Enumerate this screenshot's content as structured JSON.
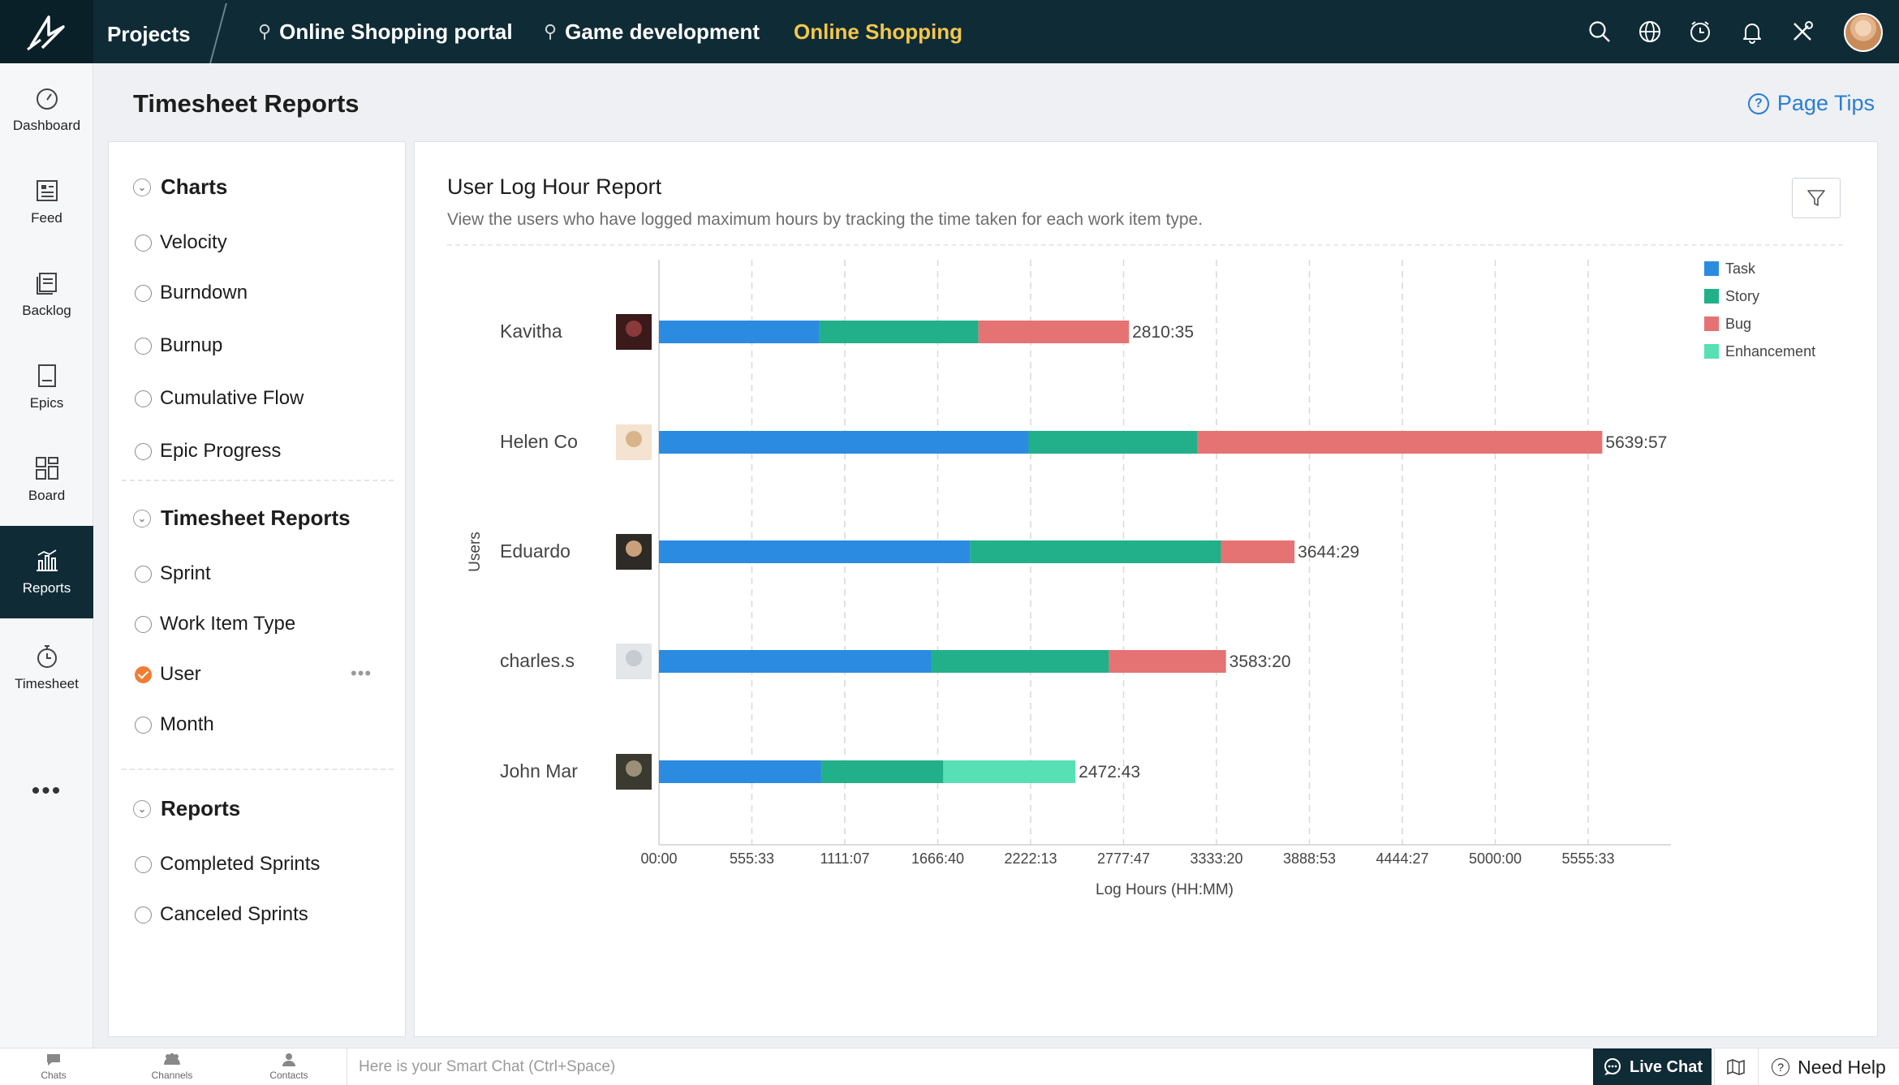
{
  "topbar": {
    "projects_label": "Projects",
    "tabs": [
      {
        "label": "Online Shopping portal",
        "pinned": true
      },
      {
        "label": "Game development",
        "pinned": true
      },
      {
        "label": "Online Shopping",
        "pinned": false,
        "active": true
      }
    ],
    "icons": [
      "search-icon",
      "globe-icon",
      "timer-icon",
      "bell-icon",
      "tools-icon",
      "user-avatar"
    ]
  },
  "sidebar": {
    "items": [
      {
        "label": "Dashboard",
        "icon": "dashboard-icon"
      },
      {
        "label": "Feed",
        "icon": "feed-icon"
      },
      {
        "label": "Backlog",
        "icon": "backlog-icon"
      },
      {
        "label": "Epics",
        "icon": "epics-icon"
      },
      {
        "label": "Board",
        "icon": "board-icon"
      },
      {
        "label": "Reports",
        "icon": "reports-icon",
        "active": true
      },
      {
        "label": "Timesheet",
        "icon": "timesheet-icon"
      }
    ],
    "more": "•••"
  },
  "header": {
    "title": "Timesheet Reports",
    "page_tips": "Page Tips"
  },
  "report_nav": {
    "sections": [
      {
        "title": "Charts",
        "items": [
          "Velocity",
          "Burndown",
          "Burnup",
          "Cumulative Flow",
          "Epic Progress"
        ]
      },
      {
        "title": "Timesheet Reports",
        "items": [
          "Sprint",
          "Work Item Type",
          "User",
          "Month"
        ],
        "selected": "User"
      },
      {
        "title": "Reports",
        "items": [
          "Completed Sprints",
          "Canceled Sprints"
        ]
      }
    ]
  },
  "report": {
    "title": "User Log Hour Report",
    "description": "View the users who have logged maximum hours by tracking the time taken for each work item type."
  },
  "chart_data": {
    "type": "bar",
    "orientation": "horizontal",
    "stacked": true,
    "ylabel": "Users",
    "xlabel": "Log Hours (HH:MM)",
    "categories": [
      "Kavitha",
      "Helen Co",
      "Eduardo",
      "charles.s",
      "John Mar"
    ],
    "totals": [
      "2810:35",
      "5639:57",
      "3644:29",
      "3583:20",
      "2472:43"
    ],
    "series": [
      {
        "name": "Task",
        "color": "#2b8be0",
        "values": [
          960,
          2210,
          1860,
          1630,
          970
        ]
      },
      {
        "name": "Story",
        "color": "#22b08a",
        "values": [
          950,
          1010,
          1500,
          1060,
          730
        ]
      },
      {
        "name": "Bug",
        "color": "#e57373",
        "values": [
          900,
          2420,
          440,
          700,
          0
        ]
      },
      {
        "name": "Enhancement",
        "color": "#56e0b4",
        "values": [
          0,
          0,
          0,
          0,
          790
        ]
      }
    ],
    "x_ticks": [
      "00:00",
      "555:33",
      "1111:07",
      "1666:40",
      "2222:13",
      "2777:47",
      "3333:20",
      "3888:53",
      "4444:27",
      "5000:00",
      "5555:33"
    ],
    "x_tick_step": 555.56,
    "xlim": [
      0,
      6111
    ],
    "grid": "vertical-dashed",
    "legend_position": "top-right"
  },
  "bottombar": {
    "chats": "Chats",
    "channels": "Channels",
    "contacts": "Contacts",
    "smartchat_placeholder": "Here is your Smart Chat (Ctrl+Space)",
    "live_chat": "Live Chat",
    "need_help": "Need Help"
  }
}
